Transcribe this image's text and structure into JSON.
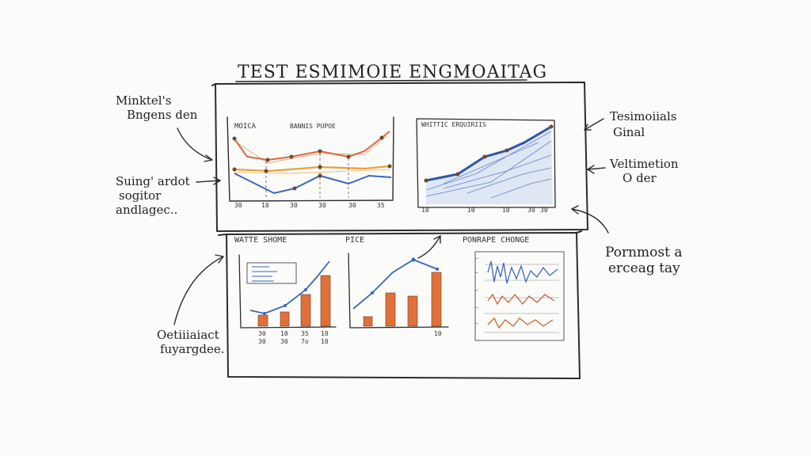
{
  "title": "TEST ESMIMOIE ENGMOAITAG",
  "annotations": {
    "left_top": [
      "Minktel's",
      "Bngens den"
    ],
    "left_mid": [
      "Suing' ardot",
      "sogitor",
      "andlagec.."
    ],
    "left_bottom": [
      "Oetiiiaiact",
      "fuyargdee."
    ],
    "right_top": [
      "Tesimoiials",
      "Ginal"
    ],
    "right_mid": [
      "Veltimetion",
      "O der"
    ],
    "right_bottom": [
      "Pornmost a",
      "erceag tay"
    ]
  },
  "panels": {
    "top_left": {
      "title_a": "MOICA",
      "title_b": "BANNIS PUPOE",
      "ticks": [
        "30",
        "10",
        "30",
        "30",
        "30",
        "35"
      ]
    },
    "top_right": {
      "title": "WHITTIC ERQUIRIIS",
      "ticks": [
        "10",
        "10",
        "10",
        "30",
        "30"
      ]
    },
    "bottom_left": {
      "title": "WATTE SHOME",
      "ticks": [
        "30",
        "10",
        "35",
        "10"
      ],
      "ticks2": [
        "30",
        "30",
        "7o",
        "10"
      ]
    },
    "bottom_mid": {
      "title": "PICE",
      "tick": "10"
    },
    "bottom_right": {
      "title": "PONRAPE CHONGE"
    }
  },
  "colors": {
    "orange": "#e07a3a",
    "gold": "#e8a23c",
    "blue": "#3b67b8",
    "bar": "#e0703a",
    "ink": "#2b2b2b"
  }
}
